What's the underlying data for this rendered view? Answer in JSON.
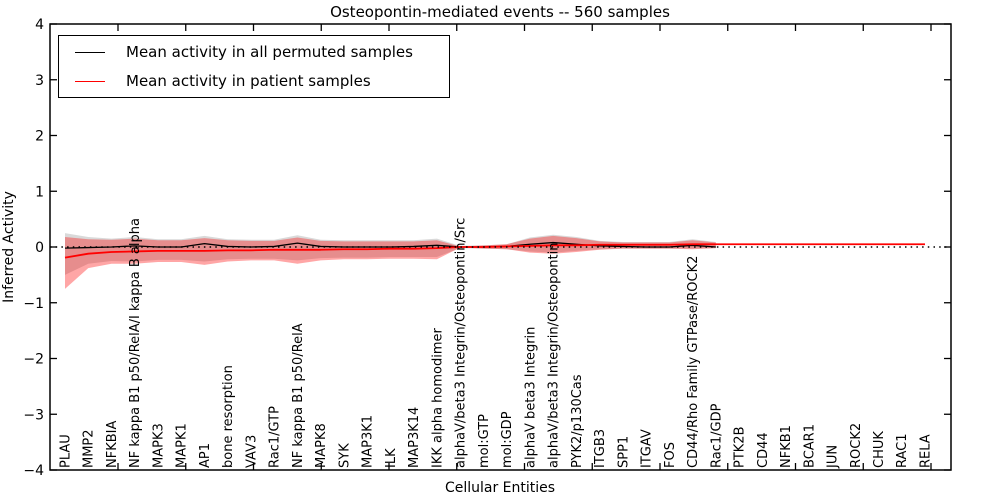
{
  "chart_data": {
    "type": "line",
    "title": "Osteopontin-mediated events -- 560 samples",
    "xlabel": "Cellular Entities",
    "ylabel": "Inferred Activity",
    "ylim": [
      -4,
      4
    ],
    "yticks": [
      4,
      3,
      2,
      1,
      0,
      -1,
      -2,
      -3,
      -4
    ],
    "ytick_labels": [
      "4",
      "3",
      "2",
      "1",
      "0",
      "−1",
      "−2",
      "−3",
      "−4"
    ],
    "grid": false,
    "legend_position": "upper left",
    "zero_line": {
      "style": "dotted",
      "color": "#000000",
      "y": 0
    },
    "categories": [
      "PLAU",
      "MMP2",
      "NFKBIA",
      "NF kappa B1 p50/RelA/I kappa B alpha",
      "MAPK3",
      "MAPK1",
      "AP1",
      "bone resorption",
      "VAV3",
      "Rac1/GTP",
      "NF kappa B1 p50/RelA",
      "MAPK8",
      "SYK",
      "MAP3K1",
      "ILK",
      "MAP3K14",
      "IKK alpha homodimer",
      "alphaV/beta3 Integrin/Osteopontin/Src",
      "mol:GTP",
      "mol:GDP",
      "alphaV beta3 Integrin",
      "alphaV/beta3 Integrin/Osteopontin",
      "PYK2/p130Cas",
      "ITGB3",
      "SPP1",
      "ITGAV",
      "FOS",
      "CD44/Rho Family GTPase/ROCK2",
      "Rac1/GDP",
      "PTK2B",
      "CD44",
      "NFKB1",
      "BCAR1",
      "JUN",
      "ROCK2",
      "CHUK",
      "RAC1",
      "RELA"
    ],
    "series": [
      {
        "name": "Mean activity in all permuted samples",
        "color": "#000000",
        "values": [
          -0.02,
          -0.01,
          0.0,
          0.02,
          0.0,
          0.0,
          0.06,
          0.01,
          0.0,
          0.01,
          0.07,
          0.01,
          0.0,
          0.0,
          0.0,
          0.01,
          0.03,
          0.0,
          0.0,
          0.01,
          0.05,
          0.08,
          0.05,
          0.02,
          0.01,
          0.0,
          0.0,
          0.03,
          0.0,
          null,
          null,
          null,
          null,
          null,
          null,
          null,
          null,
          null
        ]
      },
      {
        "name": "Mean activity in patient samples",
        "color": "#ff0000",
        "values": [
          -0.19,
          -0.12,
          -0.09,
          -0.08,
          -0.07,
          -0.07,
          -0.07,
          -0.06,
          -0.06,
          -0.05,
          -0.05,
          -0.05,
          -0.04,
          -0.04,
          -0.03,
          -0.03,
          -0.02,
          0.0,
          0.0,
          0.01,
          0.02,
          0.03,
          0.03,
          0.04,
          0.04,
          0.04,
          0.04,
          0.05,
          0.05,
          0.05,
          0.05,
          0.05,
          0.05,
          0.05,
          0.05,
          0.05,
          0.05,
          0.05
        ]
      }
    ],
    "bands": [
      {
        "name": "permuted-confidence-band",
        "color": "#aaaaaa",
        "opacity": 0.45,
        "upper": [
          0.25,
          0.18,
          0.15,
          0.18,
          0.14,
          0.14,
          0.2,
          0.14,
          0.13,
          0.13,
          0.21,
          0.13,
          0.12,
          0.12,
          0.12,
          0.12,
          0.15,
          0.02,
          0.03,
          0.05,
          0.17,
          0.22,
          0.18,
          0.11,
          0.09,
          0.09,
          0.09,
          0.14,
          0.09,
          null,
          null,
          null,
          null,
          null,
          null,
          null,
          null,
          null
        ],
        "lower": [
          -0.5,
          -0.3,
          -0.25,
          -0.26,
          -0.23,
          -0.23,
          -0.26,
          -0.22,
          -0.21,
          -0.21,
          -0.24,
          -0.2,
          -0.19,
          -0.19,
          -0.18,
          -0.18,
          -0.18,
          -0.02,
          -0.03,
          -0.04,
          -0.08,
          -0.1,
          -0.07,
          -0.04,
          -0.03,
          -0.03,
          -0.03,
          -0.03,
          -0.02,
          null,
          null,
          null,
          null,
          null,
          null,
          null,
          null,
          null
        ]
      },
      {
        "name": "patient-confidence-band",
        "color": "#ff0000",
        "opacity": 0.35,
        "upper": [
          0.18,
          0.14,
          0.13,
          0.15,
          0.12,
          0.12,
          0.16,
          0.12,
          0.11,
          0.11,
          0.17,
          0.11,
          0.1,
          0.1,
          0.1,
          0.1,
          0.12,
          0.01,
          0.03,
          0.05,
          0.15,
          0.2,
          0.16,
          0.1,
          0.08,
          0.08,
          0.08,
          0.12,
          0.08,
          null,
          null,
          null,
          null,
          null,
          null,
          null,
          null,
          null
        ],
        "lower": [
          -0.75,
          -0.38,
          -0.3,
          -0.3,
          -0.27,
          -0.27,
          -0.32,
          -0.26,
          -0.24,
          -0.24,
          -0.3,
          -0.24,
          -0.22,
          -0.22,
          -0.21,
          -0.21,
          -0.22,
          -0.01,
          -0.03,
          -0.04,
          -0.1,
          -0.12,
          -0.09,
          -0.05,
          -0.03,
          -0.03,
          -0.03,
          -0.04,
          -0.02,
          null,
          null,
          null,
          null,
          null,
          null,
          null,
          null,
          null
        ]
      }
    ]
  },
  "legend": {
    "items": [
      {
        "label": "Mean activity in all permuted samples",
        "color": "#000000"
      },
      {
        "label": "Mean activity in patient samples",
        "color": "#ff0000"
      }
    ]
  }
}
